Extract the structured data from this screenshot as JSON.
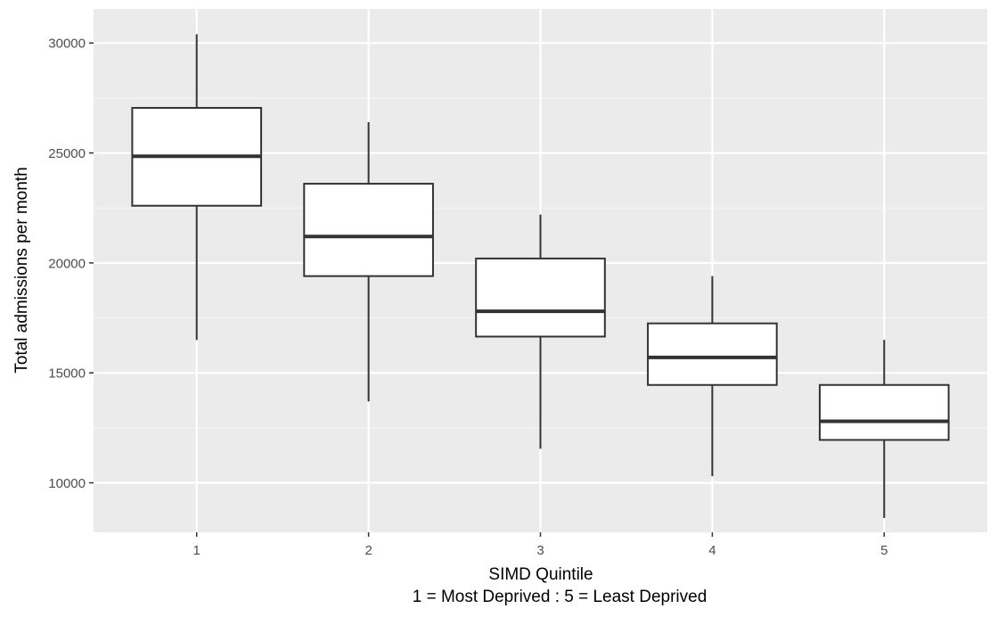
{
  "chart_data": {
    "type": "boxplot",
    "xlabel_line1": "SIMD Quintile",
    "xlabel_line2": "1 = Most Deprived : 5 = Least Deprived",
    "ylabel": "Total admissions per month",
    "categories": [
      "1",
      "2",
      "3",
      "4",
      "5"
    ],
    "boxes": [
      {
        "category": "1",
        "min": 16500,
        "q1": 22600,
        "median": 24850,
        "q3": 27050,
        "max": 30400
      },
      {
        "category": "2",
        "min": 13700,
        "q1": 19400,
        "median": 21200,
        "q3": 23600,
        "max": 26400
      },
      {
        "category": "3",
        "min": 11550,
        "q1": 16650,
        "median": 17800,
        "q3": 20200,
        "max": 22200
      },
      {
        "category": "4",
        "min": 10300,
        "q1": 14450,
        "median": 15700,
        "q3": 17250,
        "max": 19400
      },
      {
        "category": "5",
        "min": 8400,
        "q1": 11950,
        "median": 12800,
        "q3": 14450,
        "max": 16500
      }
    ],
    "yticks": [
      10000,
      15000,
      20000,
      25000,
      30000
    ],
    "ylim": [
      7750,
      31550
    ],
    "grid": true,
    "colors": {
      "panel_background": "#ebebeb",
      "grid_major": "#ffffff",
      "grid_minor": "#f5f5f5",
      "box_fill": "#ffffff",
      "box_stroke": "#333333",
      "tick_text": "#4d4d4d",
      "title_text": "#000000"
    }
  }
}
